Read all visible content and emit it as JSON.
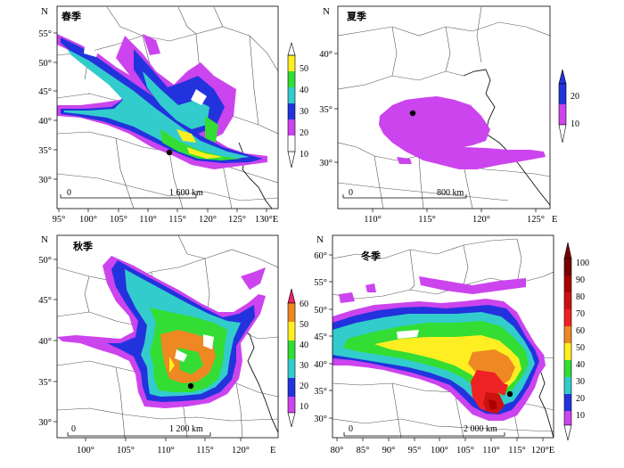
{
  "colors": {
    "c10": "#cc44ee",
    "c20": "#2233dd",
    "c30": "#33cccc",
    "c40": "#33dd33",
    "c50": "#ffee22",
    "c60": "#ee8822",
    "c70": "#ee2222",
    "c80": "#cc1111",
    "c90": "#aa0000",
    "c100": "#770000",
    "border": "#555555",
    "coast": "#111111"
  },
  "panels": [
    {
      "id": "spring",
      "season": "春季",
      "north_label": "N",
      "east_label": "E",
      "lat_ticks": [
        "55°",
        "50°",
        "45°",
        "40°",
        "35°",
        "30°"
      ],
      "lon_ticks": [
        "95°",
        "100°",
        "105°",
        "110°",
        "115°",
        "120°",
        "125°",
        "130°E"
      ],
      "scale_start": "0",
      "scale_label": "1 600 km",
      "colorbar_ticks": [
        "50",
        "40",
        "30",
        "20",
        "10"
      ]
    },
    {
      "id": "summer",
      "season": "夏季",
      "north_label": "N",
      "east_label": "E",
      "lat_ticks": [
        "40°",
        "35°",
        "30°"
      ],
      "lon_ticks": [
        "110°",
        "115°",
        "120°",
        "125°"
      ],
      "scale_start": "0",
      "scale_label": "800 km",
      "colorbar_ticks": [
        "20",
        "10"
      ]
    },
    {
      "id": "autumn",
      "season": "秋季",
      "north_label": "N",
      "east_label": "E",
      "lat_ticks": [
        "50°",
        "45°",
        "40°",
        "35°",
        "30°"
      ],
      "lon_ticks": [
        "100°",
        "105°",
        "110°",
        "115°",
        "120°"
      ],
      "scale_start": "0",
      "scale_label": "1 200 km",
      "colorbar_ticks": [
        "60",
        "50",
        "40",
        "30",
        "20",
        "10"
      ]
    },
    {
      "id": "winter",
      "season": "冬季",
      "north_label": "N",
      "east_label": "E",
      "lat_ticks": [
        "60°",
        "55°",
        "50°",
        "45°",
        "40°",
        "35°",
        "30°"
      ],
      "lon_ticks": [
        "80°",
        "85°",
        "90°",
        "95°",
        "100°",
        "105°",
        "110°",
        "115°",
        "120°E"
      ],
      "scale_start": "0",
      "scale_label": "2 000 km",
      "colorbar_ticks": [
        "100",
        "90",
        "80",
        "70",
        "60",
        "50",
        "40",
        "30",
        "20",
        "10"
      ]
    }
  ]
}
